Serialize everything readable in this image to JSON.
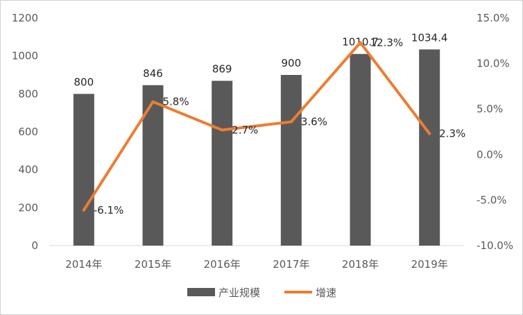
{
  "chart_data": {
    "type": "bar+line",
    "categories": [
      "2014年",
      "2015年",
      "2016年",
      "2017年",
      "2018年",
      "2019年"
    ],
    "series": [
      {
        "name": "产业规模",
        "type": "bar",
        "axis": "left",
        "values": [
          800,
          846,
          869,
          900,
          1010.7,
          1034.4
        ],
        "labels": [
          "800",
          "846",
          "869",
          "900",
          "1010.7",
          "1034.4"
        ],
        "color": "#595959"
      },
      {
        "name": "增速",
        "type": "line",
        "axis": "right",
        "values": [
          -6.1,
          5.8,
          2.7,
          3.6,
          12.3,
          2.3
        ],
        "labels": [
          "-6.1%",
          "5.8%",
          "2.7%",
          "3.6%",
          "12.3%",
          "2.3%"
        ],
        "color": "#ED7D31"
      }
    ],
    "y_left": {
      "min": 0,
      "max": 1200,
      "ticks": [
        "0",
        "200",
        "400",
        "600",
        "800",
        "1000",
        "1200"
      ]
    },
    "y_right": {
      "min": -10,
      "max": 15,
      "ticks": [
        "-10.0%",
        "-5.0%",
        "0.0%",
        "5.0%",
        "10.0%",
        "15.0%"
      ]
    },
    "grid": false,
    "legend": "bottom"
  }
}
